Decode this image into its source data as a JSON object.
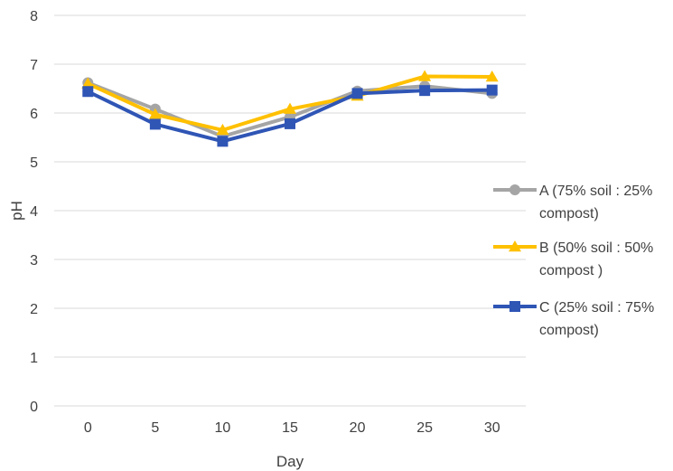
{
  "chart_data": {
    "type": "line",
    "title": "",
    "xlabel": "Day",
    "ylabel": "pH",
    "x": [
      0,
      5,
      10,
      15,
      20,
      25,
      30
    ],
    "ylim": [
      0,
      8
    ],
    "yticks": [
      "0",
      "1",
      "2",
      "3",
      "4",
      "5",
      "6",
      "7",
      "8"
    ],
    "xticks": [
      "0",
      "5",
      "10",
      "15",
      "20",
      "25",
      "30"
    ],
    "grid": true,
    "legend_position": "right",
    "series": [
      {
        "name": "A (75%  soil : 25% compost)",
        "legend_lines": [
          "A (75%  soil : 25%",
          "compost)"
        ],
        "values": [
          6.62,
          6.08,
          5.52,
          5.92,
          6.45,
          6.55,
          6.4
        ],
        "color": "#a5a5a5",
        "marker": "circle"
      },
      {
        "name": "B (50%  soil : 50% compost )",
        "legend_lines": [
          "B (50%  soil : 50%",
          "compost )"
        ],
        "values": [
          6.6,
          5.97,
          5.65,
          6.08,
          6.35,
          6.75,
          6.74
        ],
        "color": "#ffc000",
        "marker": "triangle"
      },
      {
        "name": "C (25%  soil : 75% compost)",
        "legend_lines": [
          "C (25%  soil : 75%",
          "compost)"
        ],
        "values": [
          6.44,
          5.77,
          5.42,
          5.78,
          6.4,
          6.46,
          6.47
        ],
        "color": "#2f55b5",
        "marker": "square"
      }
    ]
  }
}
